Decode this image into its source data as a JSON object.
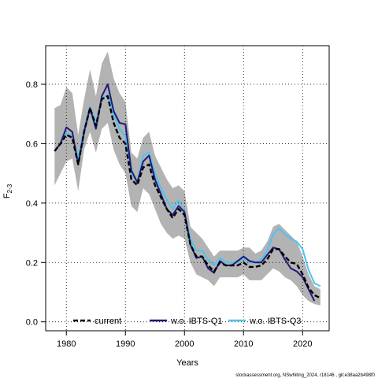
{
  "chart_data": {
    "type": "line",
    "xlabel": "Years",
    "ylabel_main": "F",
    "ylabel_sub": "2-3",
    "xlim": [
      1976.5,
      2024.5
    ],
    "ylim": [
      -0.03,
      0.93
    ],
    "x_ticks": [
      1980,
      1990,
      2000,
      2010,
      2020
    ],
    "x_tick_labels": [
      "1980",
      "1990",
      "2000",
      "2010",
      "2020"
    ],
    "y_ticks": [
      0.0,
      0.2,
      0.4,
      0.6,
      0.8
    ],
    "y_tick_labels": [
      "0.0",
      "0.2",
      "0.4",
      "0.6",
      "0.8"
    ],
    "grid": true,
    "legend_position": "bottom",
    "x": [
      1978,
      1979,
      1980,
      1981,
      1982,
      1983,
      1984,
      1985,
      1986,
      1987,
      1988,
      1989,
      1990,
      1991,
      1992,
      1993,
      1994,
      1995,
      1996,
      1997,
      1998,
      1999,
      2000,
      2001,
      2002,
      2003,
      2004,
      2005,
      2006,
      2007,
      2008,
      2009,
      2010,
      2011,
      2012,
      2013,
      2014,
      2015,
      2016,
      2017,
      2018,
      2019,
      2020,
      2021,
      2022,
      2023
    ],
    "band": {
      "upper": [
        0.72,
        0.73,
        0.79,
        0.77,
        0.63,
        0.75,
        0.85,
        0.76,
        0.87,
        0.91,
        0.82,
        0.77,
        0.74,
        0.57,
        0.55,
        0.62,
        0.64,
        0.56,
        0.52,
        0.48,
        0.45,
        0.46,
        0.44,
        0.32,
        0.3,
        0.28,
        0.25,
        0.22,
        0.24,
        0.24,
        0.24,
        0.24,
        0.25,
        0.25,
        0.23,
        0.24,
        0.27,
        0.32,
        0.33,
        0.31,
        0.29,
        0.27,
        0.22,
        0.16,
        0.12,
        0.11
      ],
      "lower": [
        0.46,
        0.5,
        0.54,
        0.55,
        0.44,
        0.58,
        0.64,
        0.57,
        0.65,
        0.67,
        0.58,
        0.53,
        0.5,
        0.39,
        0.37,
        0.45,
        0.43,
        0.38,
        0.33,
        0.3,
        0.28,
        0.29,
        0.28,
        0.2,
        0.16,
        0.15,
        0.14,
        0.12,
        0.15,
        0.15,
        0.15,
        0.15,
        0.16,
        0.14,
        0.14,
        0.14,
        0.16,
        0.18,
        0.17,
        0.15,
        0.14,
        0.12,
        0.09,
        0.07,
        0.06,
        0.055
      ]
    },
    "series": [
      {
        "name": "current",
        "color": "#000000",
        "style": "dashed",
        "values": [
          0.575,
          0.6,
          0.63,
          0.62,
          0.53,
          0.64,
          0.72,
          0.66,
          0.75,
          0.76,
          0.67,
          0.62,
          0.6,
          0.48,
          0.46,
          0.52,
          0.53,
          0.46,
          0.42,
          0.38,
          0.35,
          0.38,
          0.36,
          0.26,
          0.22,
          0.22,
          0.19,
          0.17,
          0.2,
          0.19,
          0.19,
          0.19,
          0.2,
          0.185,
          0.185,
          0.19,
          0.21,
          0.245,
          0.245,
          0.22,
          0.2,
          0.195,
          0.16,
          0.115,
          0.09,
          0.08
        ]
      },
      {
        "name": "w.o. IBTS-Q1",
        "color": "#1f1a7a",
        "style": "solid",
        "values": [
          0.575,
          0.6,
          0.655,
          0.64,
          0.53,
          0.64,
          0.72,
          0.65,
          0.76,
          0.8,
          0.71,
          0.67,
          0.665,
          0.51,
          0.47,
          0.54,
          0.56,
          0.48,
          0.43,
          0.38,
          0.36,
          0.39,
          0.37,
          0.26,
          0.215,
          0.22,
          0.18,
          0.165,
          0.205,
          0.19,
          0.19,
          0.205,
          0.22,
          0.205,
          0.2,
          0.2,
          0.225,
          0.25,
          0.245,
          0.21,
          0.18,
          0.17,
          0.15,
          0.11,
          0.07,
          null
        ]
      },
      {
        "name": "w.o. IBTS-Q3",
        "color": "#4fc3f0",
        "style": "solid",
        "values": [
          0.575,
          0.6,
          0.635,
          0.625,
          0.55,
          0.65,
          0.725,
          0.67,
          0.75,
          0.765,
          0.7,
          0.65,
          0.625,
          0.5,
          0.47,
          0.56,
          0.57,
          0.5,
          0.45,
          0.41,
          0.38,
          0.41,
          0.37,
          0.28,
          0.24,
          0.24,
          0.21,
          0.19,
          0.215,
          0.2,
          0.2,
          0.2,
          0.215,
          0.2,
          0.2,
          0.21,
          0.24,
          0.295,
          0.315,
          0.295,
          0.28,
          0.27,
          0.245,
          0.175,
          0.13,
          0.12
        ]
      }
    ],
    "legend": [
      {
        "label": "current",
        "color": "#000000",
        "style": "dashed"
      },
      {
        "label": "w.o. IBTS-Q1",
        "color": "#1f1a7a",
        "style": "solid"
      },
      {
        "label": "w.o. IBTS-Q3",
        "color": "#4fc3f0",
        "style": "solid"
      }
    ],
    "band_color": "#b3b3b3"
  },
  "footer_credit": "stockassessment.org, NSwhiting_2024, r18146 , git:e38aa2b498f0"
}
